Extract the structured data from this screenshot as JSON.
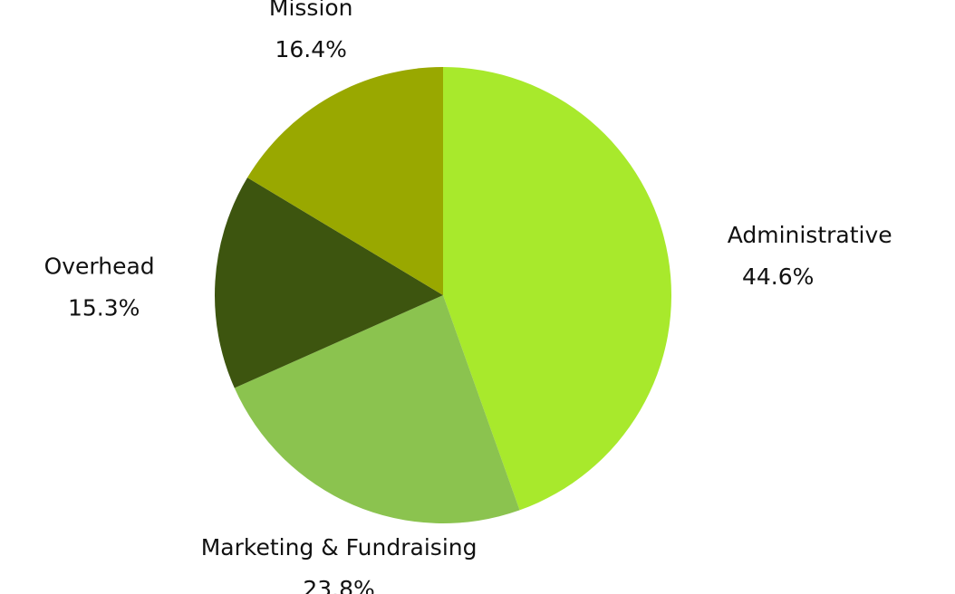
{
  "chart_data": {
    "type": "pie",
    "categories": [
      "Administrative",
      "Marketing & Fundraising",
      "Overhead",
      "Mission"
    ],
    "values": [
      44.6,
      23.8,
      15.3,
      16.4
    ],
    "value_labels": [
      "44.6%",
      "23.8%",
      "15.3%",
      "16.4%"
    ],
    "colors": [
      "#a8e92c",
      "#8bc34f",
      "#3d550f",
      "#99a800"
    ]
  }
}
